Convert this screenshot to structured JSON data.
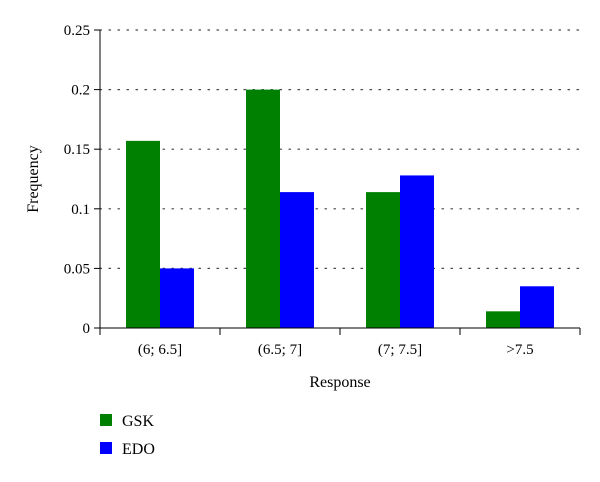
{
  "chart_data": {
    "type": "bar",
    "title": "",
    "xlabel": "Response",
    "ylabel": "Frequency",
    "categories": [
      "(6; 6.5]",
      "(6.5; 7]",
      "(7; 7.5]",
      ">7.5"
    ],
    "series": [
      {
        "name": "GSK",
        "color": "#008000",
        "values": [
          0.157,
          0.2,
          0.114,
          0.014
        ]
      },
      {
        "name": "EDO",
        "color": "#0000ff",
        "values": [
          0.05,
          0.114,
          0.128,
          0.035
        ]
      }
    ],
    "ylim": [
      0,
      0.25
    ],
    "yticks": [
      0,
      0.05,
      0.1,
      0.15,
      0.2,
      0.25
    ],
    "ytick_labels": [
      "0",
      "0.05",
      "0.1",
      "0.15",
      "0.2",
      "0.25"
    ],
    "grid": "horizontal dotted",
    "legend_position": "bottom-left"
  }
}
